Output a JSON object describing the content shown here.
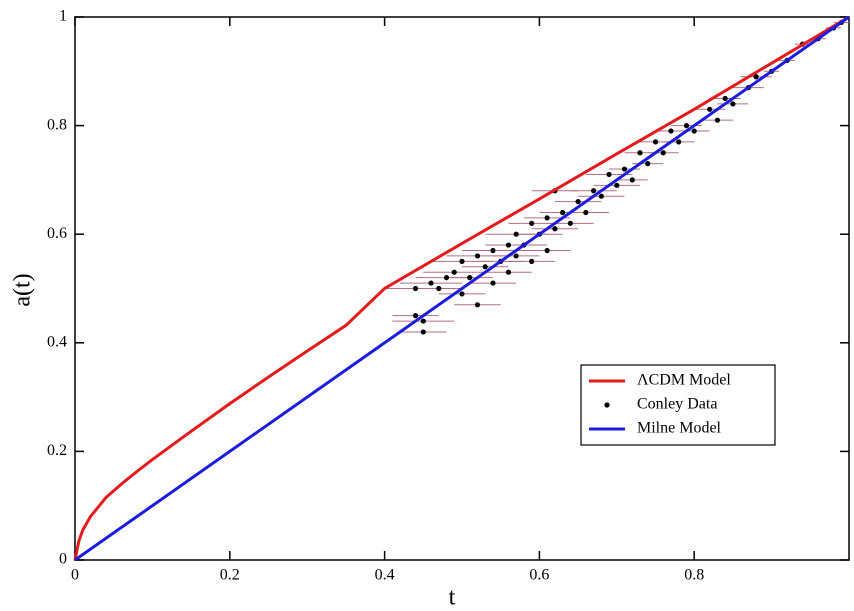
{
  "chart_data": {
    "type": "line",
    "xlabel": "t",
    "ylabel": "a(t)",
    "xlim": [
      0,
      1
    ],
    "ylim": [
      0,
      1
    ],
    "xticks": [
      0,
      0.2,
      0.4,
      0.6,
      0.8
    ],
    "yticks": [
      0,
      0.2,
      0.4,
      0.6,
      0.8,
      1
    ],
    "legend_loc": "lower right",
    "series": [
      {
        "name": "ΛCDM Model",
        "mode": "line",
        "color": "#e41a1c",
        "x": [
          0,
          0.005,
          0.01,
          0.02,
          0.04,
          0.06,
          0.08,
          0.1,
          0.15,
          0.2,
          0.25,
          0.3,
          0.35,
          0.4,
          0.5,
          0.6,
          0.7,
          0.8,
          0.9,
          1
        ],
        "values": [
          0,
          0.035,
          0.055,
          0.08,
          0.115,
          0.14,
          0.163,
          0.185,
          0.237,
          0.288,
          0.337,
          0.385,
          0.432,
          0.5,
          0.583,
          0.665,
          0.748,
          0.83,
          0.915,
          1
        ]
      },
      {
        "name": "Conley Data",
        "mode": "scatter",
        "color": "#000000",
        "errcolor": "#b07080",
        "x": [
          0.44,
          0.45,
          0.45,
          0.44,
          0.46,
          0.47,
          0.48,
          0.49,
          0.5,
          0.5,
          0.51,
          0.52,
          0.52,
          0.53,
          0.54,
          0.54,
          0.55,
          0.56,
          0.56,
          0.57,
          0.57,
          0.58,
          0.59,
          0.59,
          0.6,
          0.61,
          0.61,
          0.62,
          0.62,
          0.63,
          0.64,
          0.65,
          0.66,
          0.67,
          0.68,
          0.69,
          0.7,
          0.71,
          0.72,
          0.73,
          0.74,
          0.75,
          0.76,
          0.77,
          0.78,
          0.79,
          0.8,
          0.82,
          0.83,
          0.84,
          0.85,
          0.87,
          0.88,
          0.9,
          0.92,
          0.94,
          0.96,
          0.98,
          0.99
        ],
        "values": [
          0.5,
          0.44,
          0.42,
          0.45,
          0.51,
          0.5,
          0.52,
          0.53,
          0.49,
          0.55,
          0.52,
          0.47,
          0.56,
          0.54,
          0.51,
          0.57,
          0.55,
          0.58,
          0.53,
          0.6,
          0.56,
          0.58,
          0.62,
          0.55,
          0.6,
          0.63,
          0.57,
          0.61,
          0.68,
          0.64,
          0.62,
          0.66,
          0.64,
          0.68,
          0.67,
          0.71,
          0.69,
          0.72,
          0.7,
          0.75,
          0.73,
          0.77,
          0.75,
          0.79,
          0.77,
          0.8,
          0.79,
          0.83,
          0.81,
          0.85,
          0.84,
          0.87,
          0.89,
          0.9,
          0.92,
          0.95,
          0.96,
          0.98,
          0.99
        ],
        "xerr": [
          0.04,
          0.04,
          0.03,
          0.03,
          0.04,
          0.03,
          0.04,
          0.04,
          0.03,
          0.04,
          0.03,
          0.03,
          0.04,
          0.03,
          0.03,
          0.04,
          0.03,
          0.03,
          0.03,
          0.04,
          0.03,
          0.03,
          0.03,
          0.03,
          0.03,
          0.03,
          0.03,
          0.03,
          0.03,
          0.03,
          0.03,
          0.03,
          0.03,
          0.03,
          0.03,
          0.03,
          0.03,
          0.02,
          0.02,
          0.02,
          0.02,
          0.02,
          0.02,
          0.02,
          0.02,
          0.02,
          0.02,
          0.02,
          0.02,
          0.02,
          0.02,
          0.02,
          0.02,
          0.01,
          0.01,
          0.01,
          0.01,
          0.01,
          0.01
        ]
      },
      {
        "name": "Milne Model",
        "mode": "line",
        "color": "#1c1ce0",
        "x": [
          0,
          1
        ],
        "values": [
          0,
          1
        ]
      }
    ]
  }
}
